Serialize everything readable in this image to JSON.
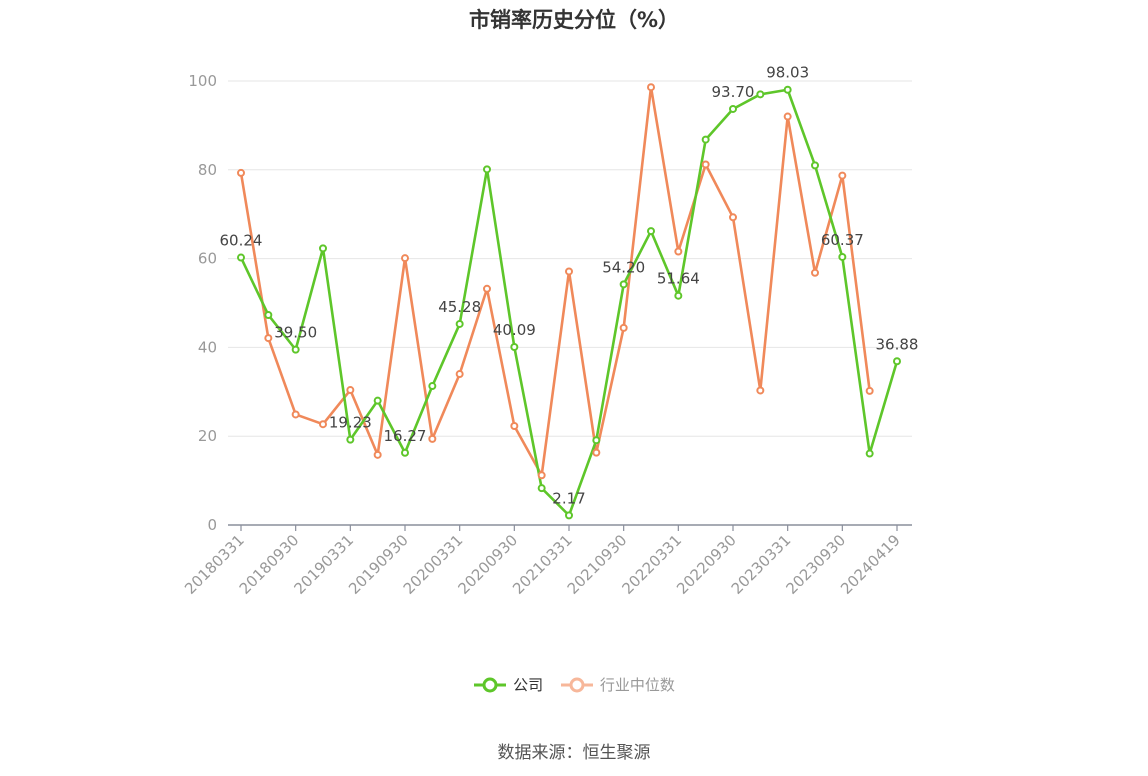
{
  "title": "市销率历史分位（%）",
  "source": "数据来源：恒生聚源",
  "legend": {
    "company": "公司",
    "industry": "行业中位数"
  },
  "colors": {
    "company": "#5ec62a",
    "industry": "#f0895a",
    "industry_legend": "#f7b79a",
    "grid": "#e6e6e6",
    "axis": "#8a8f9c"
  },
  "chart_data": {
    "type": "line",
    "title": "市销率历史分位（%）",
    "xlabel": "",
    "ylabel": "",
    "ylim": [
      0,
      100
    ],
    "yticks": [
      0,
      20,
      40,
      60,
      80,
      100
    ],
    "grid": true,
    "legend_position": "bottom",
    "x": [
      "20180331",
      "20180630",
      "20180930",
      "20181231",
      "20190331",
      "20190630",
      "20190930",
      "20191231",
      "20200331",
      "20200630",
      "20200930",
      "20201231",
      "20210331",
      "20210630",
      "20210930",
      "20211231",
      "20220331",
      "20220630",
      "20220930",
      "20221231",
      "20230331",
      "20230630",
      "20230930",
      "20231231",
      "20240419"
    ],
    "x_tick_labels": [
      "20180331",
      "20180930",
      "20190331",
      "20190930",
      "20200331",
      "20200930",
      "20210331",
      "20210930",
      "20220331",
      "20220930",
      "20230331",
      "20230930",
      "20240419"
    ],
    "series": [
      {
        "name": "公司",
        "values": [
          60.24,
          47.3,
          39.5,
          62.3,
          19.23,
          28.0,
          16.27,
          31.3,
          45.28,
          80.1,
          40.09,
          8.3,
          2.17,
          19.1,
          54.2,
          66.2,
          51.64,
          86.8,
          93.7,
          97.0,
          98.03,
          81.0,
          60.37,
          16.1,
          36.88
        ],
        "labels": [
          "60.24",
          "",
          "39.50",
          "",
          "19.23",
          "",
          "16.27",
          "",
          "45.28",
          "",
          "40.09",
          "",
          "2.17",
          "",
          "54.20",
          "",
          "51.64",
          "",
          "93.70",
          "",
          "98.03",
          "",
          "60.37",
          "",
          "36.88"
        ]
      },
      {
        "name": "行业中位数",
        "values": [
          79.3,
          42.1,
          24.9,
          22.7,
          30.4,
          15.8,
          60.1,
          19.4,
          34.0,
          53.2,
          22.3,
          11.2,
          57.1,
          16.3,
          44.4,
          98.6,
          61.6,
          81.2,
          69.3,
          30.3,
          92.0,
          56.8,
          78.7,
          30.2,
          null
        ]
      }
    ]
  }
}
